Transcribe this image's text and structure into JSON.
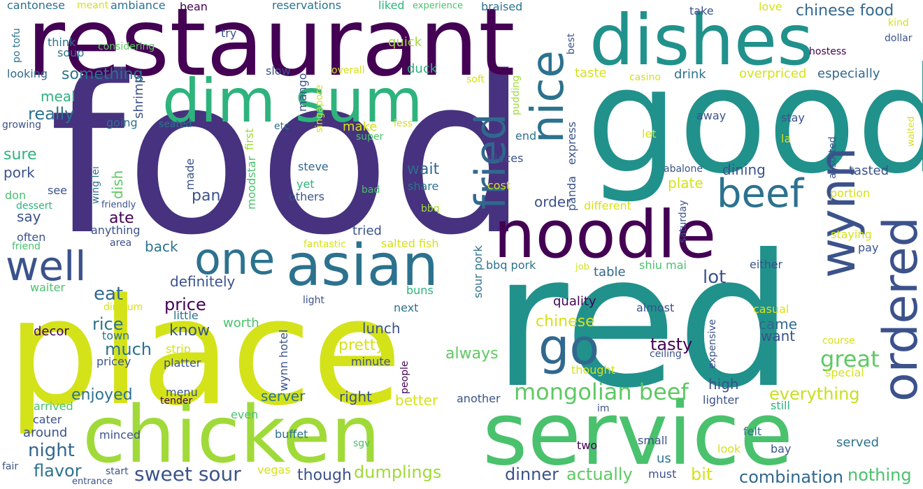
{
  "title": "",
  "colors": {
    "background": "#ffffff",
    "palette": [
      "#440154",
      "#46327e",
      "#365c8d",
      "#277f8e",
      "#1fa187",
      "#4ac16d",
      "#a0da39",
      "#d4e21a",
      "#fde725"
    ]
  },
  "words": [
    {
      "text": "food",
      "color": "#46327e"
    },
    {
      "text": "red",
      "color": "#21918c"
    },
    {
      "text": "place",
      "color": "#d4e21a"
    },
    {
      "text": "good",
      "color": "#21918c"
    },
    {
      "text": "restaurant",
      "color": "#440154"
    },
    {
      "text": "service",
      "color": "#4ac16d"
    },
    {
      "text": "chicken",
      "color": "#a0da39"
    },
    {
      "text": "dishes",
      "color": "#21918c"
    },
    {
      "text": "noodle",
      "color": "#440154"
    },
    {
      "text": "dim sum",
      "color": "#2eb37c"
    },
    {
      "text": "asian",
      "color": "#2c728e"
    },
    {
      "text": "one",
      "color": "#2c728e"
    },
    {
      "text": "well",
      "color": "#3b528b"
    },
    {
      "text": "wynn",
      "color": "#3b528b"
    },
    {
      "text": "ordered",
      "color": "#3b528b"
    },
    {
      "text": "nice",
      "color": "#2c728e"
    },
    {
      "text": "fried",
      "color": "#31688e"
    },
    {
      "text": "beef",
      "color": "#2c728e"
    },
    {
      "text": "go",
      "color": "#31688e"
    },
    {
      "text": "mongolian beef",
      "color": "#5ec962"
    },
    {
      "text": "great",
      "color": "#5ec962"
    },
    {
      "text": "everything",
      "color": "#c8e020"
    },
    {
      "text": "sweet sour",
      "color": "#3b528b"
    },
    {
      "text": "dumplings",
      "color": "#a0da39"
    },
    {
      "text": "actually",
      "color": "#5ec962"
    },
    {
      "text": "dinner",
      "color": "#3b528b"
    },
    {
      "text": "combination",
      "color": "#31688e"
    },
    {
      "text": "nothing",
      "color": "#4ac16d"
    },
    {
      "text": "bit",
      "color": "#d4e21a"
    },
    {
      "text": "flavor",
      "color": "#2c728e"
    },
    {
      "text": "though",
      "color": "#3b528b"
    },
    {
      "text": "night",
      "color": "#31688e"
    },
    {
      "text": "enjoyed",
      "color": "#2c728e"
    },
    {
      "text": "price",
      "color": "#440154"
    },
    {
      "text": "definitely",
      "color": "#3b528b"
    },
    {
      "text": "eat",
      "color": "#31688e"
    },
    {
      "text": "lot",
      "color": "#3b528b"
    },
    {
      "text": "know",
      "color": "#3b528b"
    },
    {
      "text": "much",
      "color": "#2c728e"
    },
    {
      "text": "rice",
      "color": "#2c728e"
    },
    {
      "text": "tasty",
      "color": "#440154"
    },
    {
      "text": "pretty",
      "color": "#d4e21a"
    },
    {
      "text": "always",
      "color": "#5ec962"
    },
    {
      "text": "chinese",
      "color": "#d4e21a"
    },
    {
      "text": "lunch",
      "color": "#3b528b"
    },
    {
      "text": "quality",
      "color": "#440154"
    },
    {
      "text": "came",
      "color": "#31688e"
    },
    {
      "text": "want",
      "color": "#3b528b"
    },
    {
      "text": "chinese food",
      "color": "#31688e"
    },
    {
      "text": "something",
      "color": "#2c728e"
    },
    {
      "text": "really",
      "color": "#2c728e"
    },
    {
      "text": "wait",
      "color": "#31688e"
    },
    {
      "text": "make",
      "color": "#d4e21a"
    },
    {
      "text": "order",
      "color": "#3b528b"
    },
    {
      "text": "plate",
      "color": "#d4e21a"
    },
    {
      "text": "dining",
      "color": "#3b528b"
    },
    {
      "text": "duck",
      "color": "#2eb37c"
    },
    {
      "text": "meal",
      "color": "#2eb37c"
    },
    {
      "text": "taste",
      "color": "#d4e21a"
    },
    {
      "text": "drink",
      "color": "#2c728e"
    },
    {
      "text": "overpriced",
      "color": "#d4e21a"
    },
    {
      "text": "especially",
      "color": "#31688e"
    },
    {
      "text": "sure",
      "color": "#2eb37c"
    },
    {
      "text": "pork",
      "color": "#3b528b"
    },
    {
      "text": "say",
      "color": "#3b528b"
    },
    {
      "text": "pan",
      "color": "#3b528b"
    },
    {
      "text": "ate",
      "color": "#440154"
    },
    {
      "text": "back",
      "color": "#2c728e"
    },
    {
      "text": "server",
      "color": "#2c728e"
    },
    {
      "text": "right",
      "color": "#3b528b"
    },
    {
      "text": "better",
      "color": "#d4e21a"
    },
    {
      "text": "high",
      "color": "#3b528b"
    },
    {
      "text": "tried",
      "color": "#3b528b"
    },
    {
      "text": "bbq pork",
      "color": "#2c728e"
    },
    {
      "text": "shiu mai",
      "color": "#4ac16d"
    },
    {
      "text": "table",
      "color": "#31688e"
    },
    {
      "text": "either",
      "color": "#3b528b"
    },
    {
      "text": "cost",
      "color": "#d4e21a"
    },
    {
      "text": "different",
      "color": "#d4e21a"
    },
    {
      "text": "tasted",
      "color": "#3b528b"
    },
    {
      "text": "portion",
      "color": "#d4e21a"
    },
    {
      "text": "staying",
      "color": "#d4e21a"
    },
    {
      "text": "pay",
      "color": "#3b528b"
    },
    {
      "text": "casual",
      "color": "#d4e21a"
    },
    {
      "text": "almost",
      "color": "#3b528b"
    },
    {
      "text": "worth",
      "color": "#4ac16d"
    },
    {
      "text": "little",
      "color": "#2c728e"
    },
    {
      "text": "decor",
      "color": "#440154"
    },
    {
      "text": "town",
      "color": "#2c728e"
    },
    {
      "text": "pricey",
      "color": "#3b528b"
    },
    {
      "text": "platter",
      "color": "#3b528b"
    },
    {
      "text": "strip",
      "color": "#d4e21a"
    },
    {
      "text": "minute",
      "color": "#3b528b"
    },
    {
      "text": "menu",
      "color": "#3b528b"
    },
    {
      "text": "tender",
      "color": "#440154"
    },
    {
      "text": "arrived",
      "color": "#4ac16d"
    },
    {
      "text": "cater",
      "color": "#3b528b"
    },
    {
      "text": "around",
      "color": "#3b528b"
    },
    {
      "text": "minced",
      "color": "#3b528b"
    },
    {
      "text": "two",
      "color": "#440154"
    },
    {
      "text": "small",
      "color": "#3b528b"
    },
    {
      "text": "us",
      "color": "#2c728e"
    },
    {
      "text": "felt",
      "color": "#2c728e"
    },
    {
      "text": "look",
      "color": "#d4e21a"
    },
    {
      "text": "bay",
      "color": "#3b528b"
    },
    {
      "text": "served",
      "color": "#2c728e"
    },
    {
      "text": "lighter",
      "color": "#3b528b"
    },
    {
      "text": "still",
      "color": "#2eb37c"
    },
    {
      "text": "im",
      "color": "#3b528b"
    },
    {
      "text": "another",
      "color": "#3b528b"
    },
    {
      "text": "even",
      "color": "#4ac16d"
    },
    {
      "text": "buffet",
      "color": "#2c728e"
    },
    {
      "text": "sgv",
      "color": "#4ac16d"
    },
    {
      "text": "vegas",
      "color": "#d4e21a"
    },
    {
      "text": "must",
      "color": "#3b528b"
    },
    {
      "text": "start",
      "color": "#3b528b"
    },
    {
      "text": "entrance",
      "color": "#3b528b"
    },
    {
      "text": "fair",
      "color": "#3b528b"
    },
    {
      "text": "course",
      "color": "#d4e21a"
    },
    {
      "text": "special",
      "color": "#d4e21a"
    },
    {
      "text": "ceiling",
      "color": "#3b528b"
    },
    {
      "text": "thought",
      "color": "#d4e21a"
    },
    {
      "text": "job",
      "color": "#d4e21a"
    },
    {
      "text": "next",
      "color": "#2c728e"
    },
    {
      "text": "buns",
      "color": "#2eb37c"
    },
    {
      "text": "light",
      "color": "#3b528b"
    },
    {
      "text": "salted fish",
      "color": "#d4e21a"
    },
    {
      "text": "fantastic",
      "color": "#d4e21a"
    },
    {
      "text": "area",
      "color": "#3b528b"
    },
    {
      "text": "anything",
      "color": "#3b528b"
    },
    {
      "text": "friendly",
      "color": "#3b528b"
    },
    {
      "text": "often",
      "color": "#3b528b"
    },
    {
      "text": "friend",
      "color": "#4ac16d"
    },
    {
      "text": "waiter",
      "color": "#4ac16d"
    },
    {
      "text": "dimsum",
      "color": "#d4e21a"
    },
    {
      "text": "dessert",
      "color": "#2eb37c"
    },
    {
      "text": "don",
      "color": "#4ac16d"
    },
    {
      "text": "growing",
      "color": "#3b528b"
    },
    {
      "text": "looking",
      "color": "#31688e"
    },
    {
      "text": "cantonese",
      "color": "#2c728e"
    },
    {
      "text": "meant",
      "color": "#d4e21a"
    },
    {
      "text": "ambiance",
      "color": "#2c728e"
    },
    {
      "text": "bean",
      "color": "#440154"
    },
    {
      "text": "reservations",
      "color": "#2c728e"
    },
    {
      "text": "liked",
      "color": "#2eb37c"
    },
    {
      "text": "experience",
      "color": "#4ac16d"
    },
    {
      "text": "braised",
      "color": "#2c728e"
    },
    {
      "text": "take",
      "color": "#3b528b"
    },
    {
      "text": "love",
      "color": "#d4e21a"
    },
    {
      "text": "kind",
      "color": "#d4e21a"
    },
    {
      "text": "dollar",
      "color": "#3b528b"
    },
    {
      "text": "hostess",
      "color": "#440154"
    },
    {
      "text": "think",
      "color": "#2c728e"
    },
    {
      "text": "soup",
      "color": "#2c728e"
    },
    {
      "text": "considering",
      "color": "#5ec962"
    },
    {
      "text": "try",
      "color": "#3b528b"
    },
    {
      "text": "quick",
      "color": "#a0da39"
    },
    {
      "text": "overall",
      "color": "#d4e21a"
    },
    {
      "text": "soft",
      "color": "#d4e21a"
    },
    {
      "text": "casino",
      "color": "#d4e21a"
    },
    {
      "text": "slow",
      "color": "#3b528b"
    },
    {
      "text": "going",
      "color": "#2c728e"
    },
    {
      "text": "seated",
      "color": "#2c728e"
    },
    {
      "text": "etc",
      "color": "#2c728e"
    },
    {
      "text": "less",
      "color": "#d4e21a"
    },
    {
      "text": "super",
      "color": "#4ac16d"
    },
    {
      "text": "end",
      "color": "#2c728e"
    },
    {
      "text": "pieces",
      "color": "#3b528b"
    },
    {
      "text": "steve",
      "color": "#31688e"
    },
    {
      "text": "yet",
      "color": "#2eb37c"
    },
    {
      "text": "others",
      "color": "#3b528b"
    },
    {
      "text": "share",
      "color": "#2c728e"
    },
    {
      "text": "bad",
      "color": "#4ac16d"
    },
    {
      "text": "bbq",
      "color": "#a0da39"
    },
    {
      "text": "abalone",
      "color": "#3b528b"
    },
    {
      "text": "let",
      "color": "#d4e21a"
    },
    {
      "text": "away",
      "color": "#3b528b"
    },
    {
      "text": "stay",
      "color": "#3b528b"
    },
    {
      "text": "la",
      "color": "#d4e21a"
    },
    {
      "text": "see",
      "color": "#3b528b"
    },
    {
      "text": "po tofu",
      "color": "#2c728e"
    },
    {
      "text": "best",
      "color": "#3b528b"
    },
    {
      "text": "waited",
      "color": "#d4e21a"
    },
    {
      "text": "mango",
      "color": "#3b528b"
    },
    {
      "text": "singapore",
      "color": "#d4e21a"
    },
    {
      "text": "pudding",
      "color": "#a0da39"
    },
    {
      "text": "shrimp",
      "color": "#3b528b"
    },
    {
      "text": "first",
      "color": "#a0da39"
    },
    {
      "text": "moodstar",
      "color": "#4ac16d"
    },
    {
      "text": "made",
      "color": "#3b528b"
    },
    {
      "text": "dish",
      "color": "#5ec962"
    },
    {
      "text": "wing lei",
      "color": "#2c728e"
    },
    {
      "text": "express",
      "color": "#3b528b"
    },
    {
      "text": "panda",
      "color": "#3b528b"
    },
    {
      "text": "sour pork",
      "color": "#2c728e"
    },
    {
      "text": "wynn hotel",
      "color": "#3b528b"
    },
    {
      "text": "people",
      "color": "#440154"
    },
    {
      "text": "expensive",
      "color": "#3b528b"
    },
    {
      "text": "saturday",
      "color": "#3b528b"
    },
    {
      "text": "assorted",
      "color": "#3b528b"
    }
  ]
}
